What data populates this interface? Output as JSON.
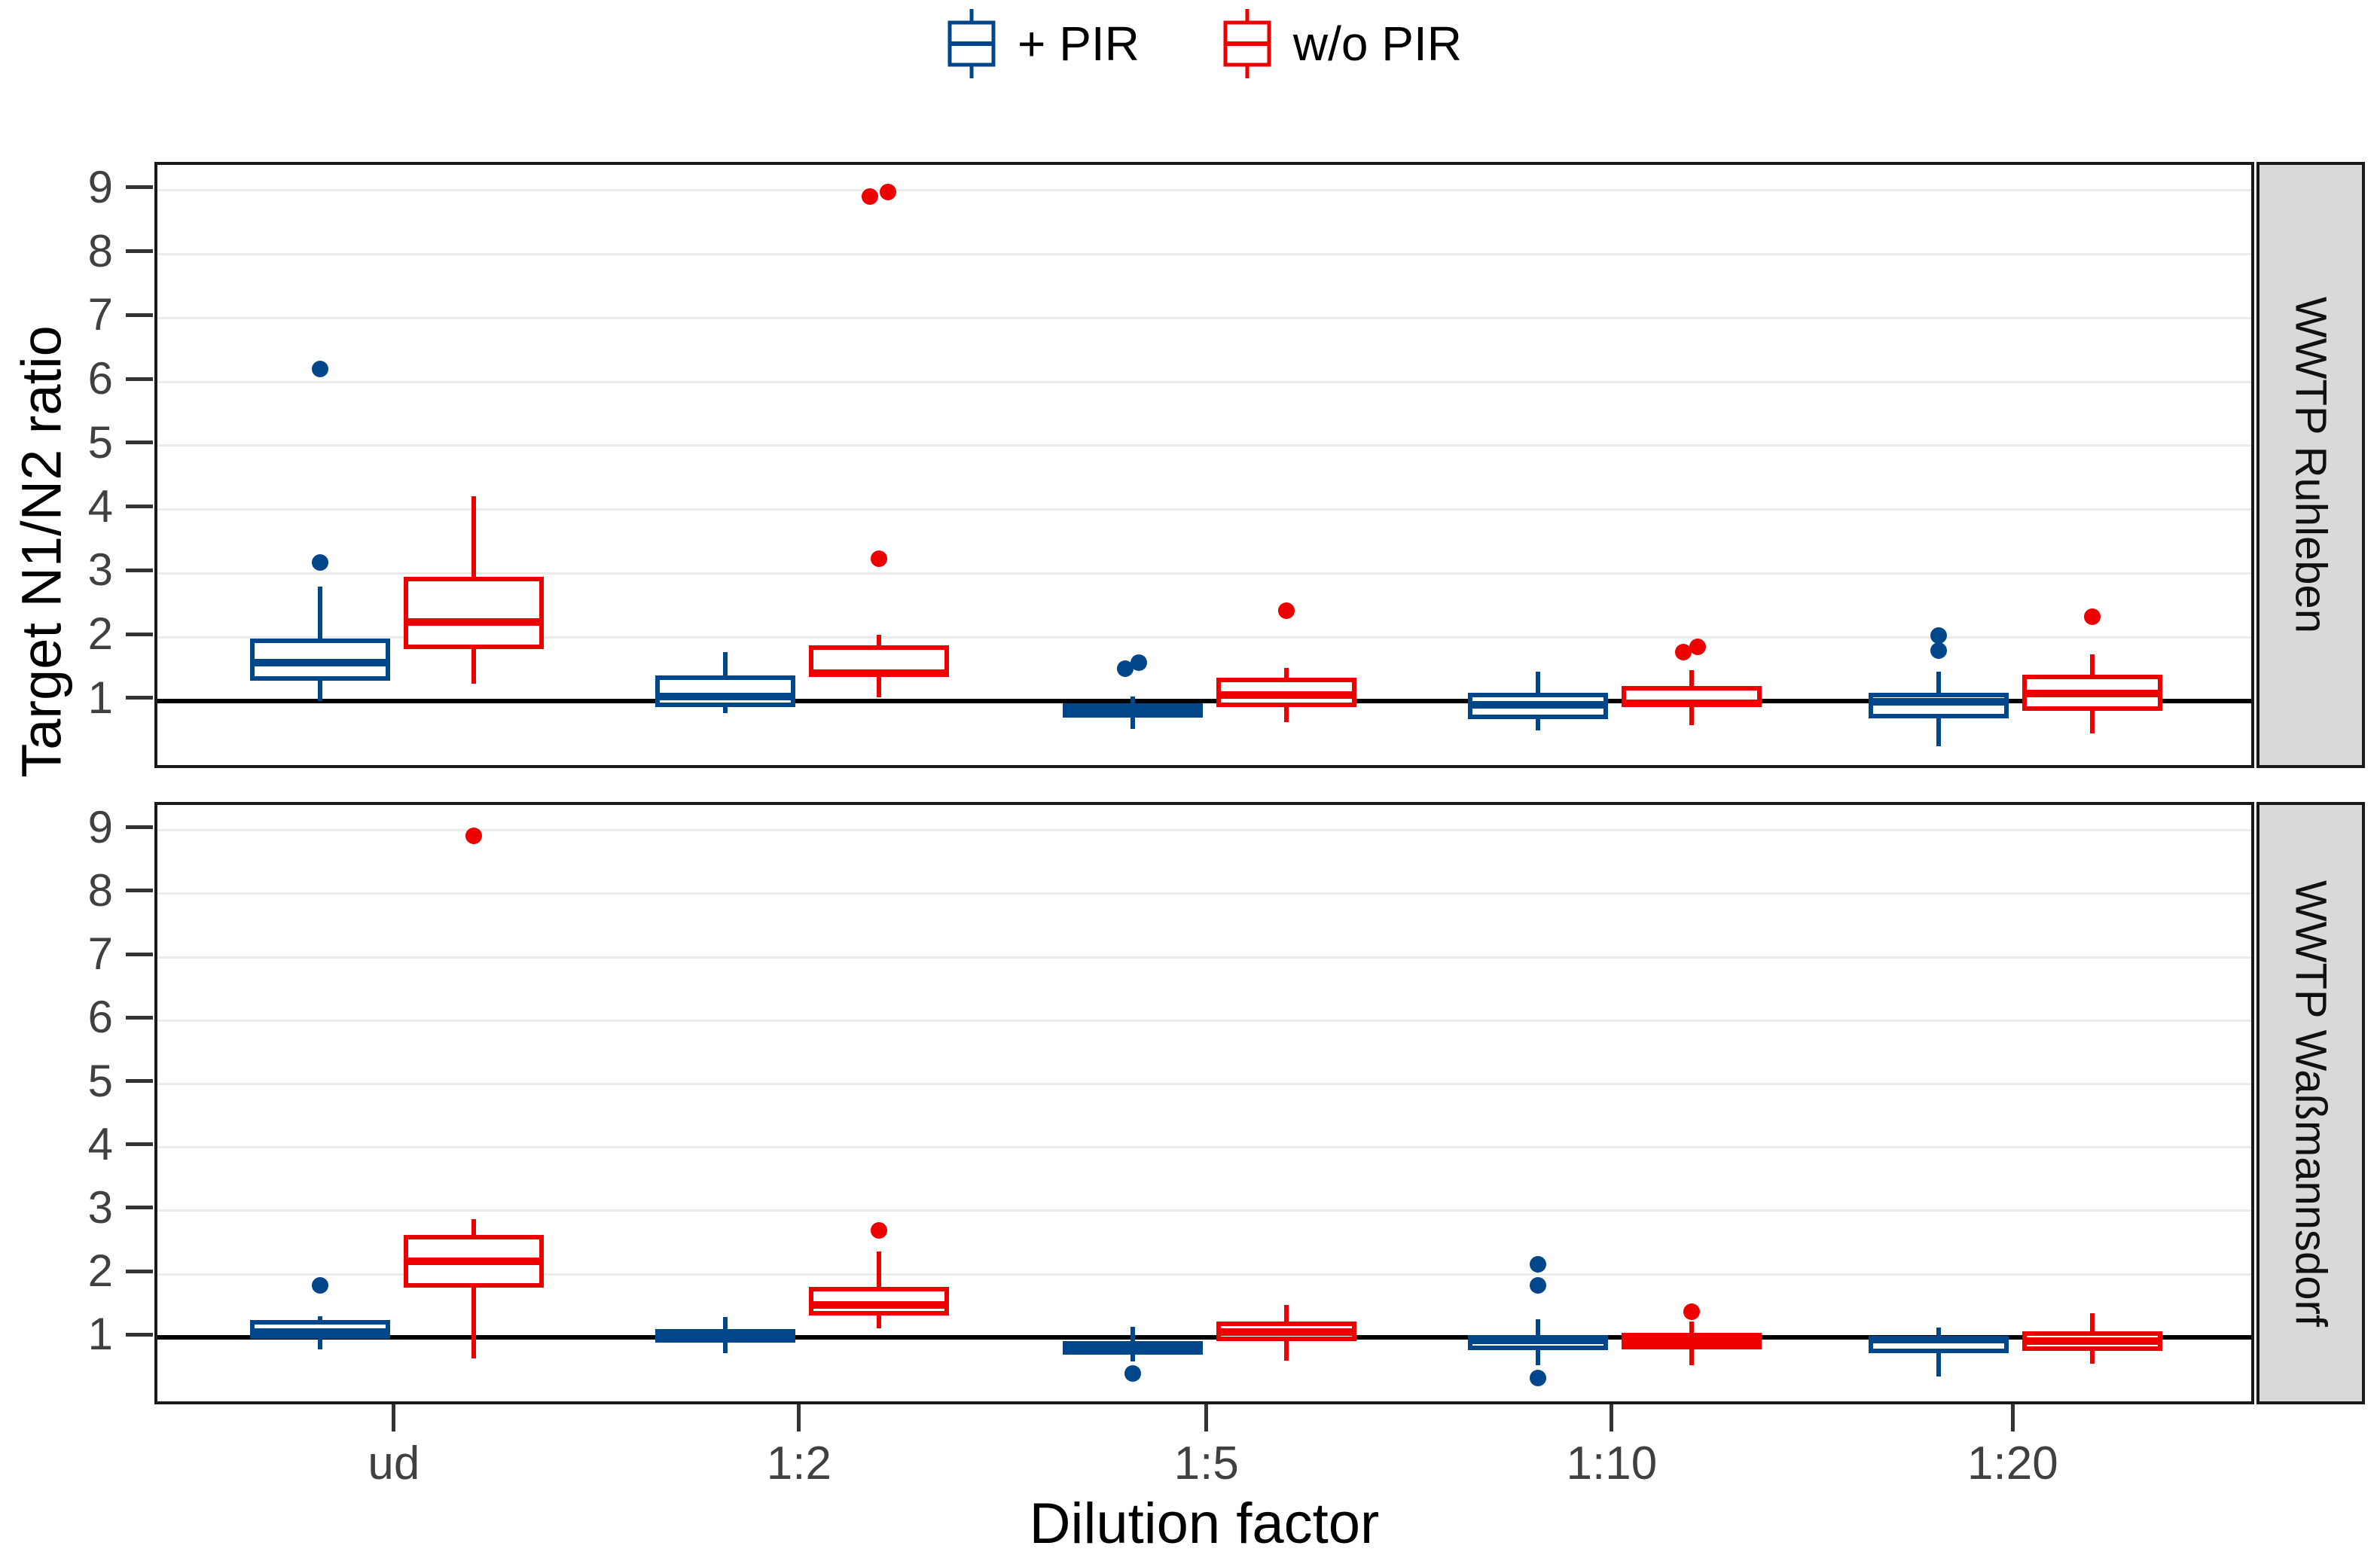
{
  "colors": {
    "plus_pir": "#00468B",
    "wo_pir": "#ED0000",
    "gridline": "#EBEBEB",
    "panel_border": "#1A1A1A",
    "strip_bg": "#D9D9D9",
    "reference_line": "#000000",
    "tick_label": "#404040"
  },
  "legend": {
    "items": [
      {
        "label": "+ PIR",
        "color": "#00468B"
      },
      {
        "label": "w/o PIR",
        "color": "#ED0000"
      }
    ]
  },
  "chart_data": {
    "type": "boxplot",
    "xlabel": "Dilution factor",
    "ylabel": "Target N1/N2 ratio",
    "categories": [
      "ud",
      "1:2",
      "1:5",
      "1:10",
      "1:20"
    ],
    "y_ticks": [
      1,
      2,
      3,
      4,
      5,
      6,
      7,
      8,
      9
    ],
    "ylim": [
      -0.1,
      9.4
    ],
    "grid": "major-horizontal",
    "legend_position": "top-center",
    "reference_line_y": 1,
    "series_names": [
      "+ PIR",
      "w/o PIR"
    ],
    "facets": [
      {
        "label": "WWTP Ruhleben",
        "groups": [
          {
            "category": "ud",
            "boxes": [
              {
                "series": "+ PIR",
                "low": 1.0,
                "q1": 1.32,
                "median": 1.6,
                "q3": 1.98,
                "high": 2.79,
                "outliers": [
                  {
                    "v": 3.17,
                    "dx": 0
                  },
                  {
                    "v": 6.2,
                    "dx": 0
                  }
                ]
              },
              {
                "series": "w/o PIR",
                "low": 1.27,
                "q1": 1.81,
                "median": 2.24,
                "q3": 2.94,
                "high": 4.21,
                "outliers": []
              }
            ]
          },
          {
            "category": "1:2",
            "boxes": [
              {
                "series": "+ PIR",
                "low": 0.81,
                "q1": 0.9,
                "median": 1.07,
                "q3": 1.4,
                "high": 1.77,
                "outliers": []
              },
              {
                "series": "w/o PIR",
                "low": 1.06,
                "q1": 1.37,
                "median": 1.44,
                "q3": 1.87,
                "high": 2.04,
                "outliers": [
                  {
                    "v": 3.23,
                    "dx": 0
                  },
                  {
                    "v": 8.9,
                    "dx": -12
                  },
                  {
                    "v": 8.97,
                    "dx": 12
                  }
                ]
              }
            ]
          },
          {
            "category": "1:5",
            "boxes": [
              {
                "series": "+ PIR",
                "low": 0.56,
                "q1": 0.74,
                "median": 0.87,
                "q3": 0.96,
                "high": 1.07,
                "outliers": [
                  {
                    "v": 1.5,
                    "dx": -10
                  },
                  {
                    "v": 1.6,
                    "dx": 8
                  }
                ]
              },
              {
                "series": "w/o PIR",
                "low": 0.67,
                "q1": 0.9,
                "median": 1.09,
                "q3": 1.36,
                "high": 1.52,
                "outliers": [
                  {
                    "v": 2.41,
                    "dx": 0
                  }
                ]
              }
            ]
          },
          {
            "category": "1:10",
            "boxes": [
              {
                "series": "+ PIR",
                "low": 0.54,
                "q1": 0.72,
                "median": 0.94,
                "q3": 1.13,
                "high": 1.46,
                "outliers": []
              },
              {
                "series": "w/o PIR",
                "low": 0.62,
                "q1": 0.9,
                "median": 0.96,
                "q3": 1.23,
                "high": 1.48,
                "outliers": [
                  {
                    "v": 1.77,
                    "dx": -11
                  },
                  {
                    "v": 1.85,
                    "dx": 8
                  }
                ]
              }
            ]
          },
          {
            "category": "1:20",
            "boxes": [
              {
                "series": "+ PIR",
                "low": 0.29,
                "q1": 0.73,
                "median": 0.99,
                "q3": 1.13,
                "high": 1.46,
                "outliers": [
                  {
                    "v": 1.79,
                    "dx": 0
                  },
                  {
                    "v": 2.02,
                    "dx": 0
                  }
                ]
              },
              {
                "series": "w/o PIR",
                "low": 0.49,
                "q1": 0.84,
                "median": 1.12,
                "q3": 1.41,
                "high": 1.73,
                "outliers": [
                  {
                    "v": 2.32,
                    "dx": 0
                  }
                ]
              }
            ]
          }
        ]
      },
      {
        "label": "WWTP Waßmannsdorf",
        "groups": [
          {
            "category": "ud",
            "boxes": [
              {
                "series": "+ PIR",
                "low": 0.82,
                "q1": 0.98,
                "median": 1.09,
                "q3": 1.28,
                "high": 1.34,
                "outliers": [
                  {
                    "v": 1.82,
                    "dx": 0
                  }
                ]
              },
              {
                "series": "w/o PIR",
                "low": 0.67,
                "q1": 1.79,
                "median": 2.2,
                "q3": 2.62,
                "high": 2.87,
                "outliers": [
                  {
                    "v": 8.91,
                    "dx": 0
                  }
                ]
              }
            ]
          },
          {
            "category": "1:2",
            "boxes": [
              {
                "series": "+ PIR",
                "low": 0.75,
                "q1": 0.92,
                "median": 1.04,
                "q3": 1.13,
                "high": 1.32,
                "outliers": []
              },
              {
                "series": "w/o PIR",
                "low": 1.15,
                "q1": 1.35,
                "median": 1.52,
                "q3": 1.8,
                "high": 2.36,
                "outliers": [
                  {
                    "v": 2.69,
                    "dx": 0
                  }
                ]
              }
            ]
          },
          {
            "category": "1:5",
            "boxes": [
              {
                "series": "+ PIR",
                "low": 0.63,
                "q1": 0.73,
                "median": 0.86,
                "q3": 0.94,
                "high": 1.17,
                "outliers": [
                  {
                    "v": 0.44,
                    "dx": 0
                  }
                ]
              },
              {
                "series": "w/o PIR",
                "low": 0.64,
                "q1": 0.95,
                "median": 1.09,
                "q3": 1.25,
                "high": 1.51,
                "outliers": []
              }
            ]
          },
          {
            "category": "1:10",
            "boxes": [
              {
                "series": "+ PIR",
                "low": 0.57,
                "q1": 0.8,
                "median": 0.96,
                "q3": 1.04,
                "high": 1.29,
                "outliers": [
                  {
                    "v": 2.16,
                    "dx": 0
                  },
                  {
                    "v": 1.82,
                    "dx": 0
                  },
                  {
                    "v": 0.36,
                    "dx": 0
                  }
                ]
              },
              {
                "series": "w/o PIR",
                "low": 0.57,
                "q1": 0.82,
                "median": 0.95,
                "q3": 1.08,
                "high": 1.25,
                "outliers": [
                  {
                    "v": 1.41,
                    "dx": 0
                  }
                ]
              }
            ]
          },
          {
            "category": "1:20",
            "boxes": [
              {
                "series": "+ PIR",
                "low": 0.39,
                "q1": 0.76,
                "median": 0.97,
                "q3": 1.02,
                "high": 1.16,
                "outliers": []
              },
              {
                "series": "w/o PIR",
                "low": 0.59,
                "q1": 0.79,
                "median": 0.94,
                "q3": 1.1,
                "high": 1.39,
                "outliers": []
              }
            ]
          }
        ]
      }
    ]
  }
}
